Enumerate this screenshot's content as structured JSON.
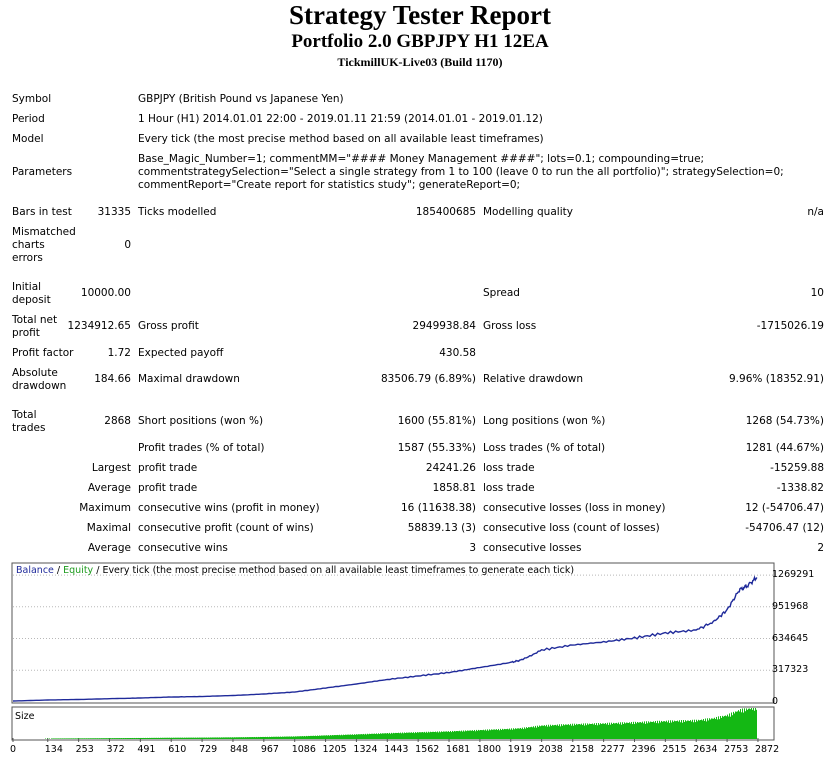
{
  "header": {
    "title": "Strategy Tester Report",
    "subtitle": "Portfolio 2.0 GBPJPY H1 12EA",
    "server": "TickmillUK-Live03 (Build 1170)"
  },
  "info": {
    "symbol_label": "Symbol",
    "symbol_value": "GBPJPY (British Pound vs Japanese Yen)",
    "period_label": "Period",
    "period_value": "1 Hour (H1) 2014.01.01 22:00 - 2019.01.11 21:59 (2014.01.01 - 2019.01.12)",
    "model_label": "Model",
    "model_value": "Every tick (the most precise method based on all available least timeframes)",
    "parameters_label": "Parameters",
    "parameters_value": "Base_Magic_Number=1; commentMM=\"#### Money Management ####\"; lots=0.1; compounding=true; commentstrategySelection=\"Select a single strategy from 1 to 100 (leave 0 to run the all portfolio)\"; strategySelection=0; commentReport=\"Create report for statistics study\"; generateReport=0;",
    "bars_label": "Bars in test",
    "bars_value": "31335",
    "ticks_label": "Ticks modelled",
    "ticks_value": "185400685",
    "quality_label": "Modelling quality",
    "quality_value": "n/a",
    "mismatched_label": "Mismatched charts errors",
    "mismatched_value": "0"
  },
  "results": {
    "deposit_label": "Initial deposit",
    "deposit_value": "10000.00",
    "spread_label": "Spread",
    "spread_value": "10",
    "net_label": "Total net profit",
    "net_value": "1234912.65",
    "gross_profit_label": "Gross profit",
    "gross_profit_value": "2949938.84",
    "gross_loss_label": "Gross loss",
    "gross_loss_value": "-1715026.19",
    "pf_label": "Profit factor",
    "pf_value": "1.72",
    "ep_label": "Expected payoff",
    "ep_value": "430.58",
    "abs_dd_label": "Absolute drawdown",
    "abs_dd_value": "184.66",
    "max_dd_label": "Maximal drawdown",
    "max_dd_value": "83506.79 (6.89%)",
    "rel_dd_label": "Relative drawdown",
    "rel_dd_value": "9.96% (18352.91)",
    "trades_label": "Total trades",
    "trades_value": "2868",
    "short_label": "Short positions (won %)",
    "short_value": "1600 (55.81%)",
    "long_label": "Long positions (won %)",
    "long_value": "1268 (54.73%)",
    "profit_trades_label": "Profit trades (% of total)",
    "profit_trades_value": "1587 (55.33%)",
    "loss_trades_label": "Loss trades (% of total)",
    "loss_trades_value": "1281 (44.67%)",
    "largest_label": "Largest",
    "largest_pt_label": "profit trade",
    "largest_pt_value": "24241.26",
    "largest_lt_label": "loss trade",
    "largest_lt_value": "-15259.88",
    "average_label": "Average",
    "average_pt_label": "profit trade",
    "average_pt_value": "1858.81",
    "average_lt_label": "loss trade",
    "average_lt_value": "-1338.82",
    "maximum_label": "Maximum",
    "max_cw_label": "consecutive wins (profit in money)",
    "max_cw_value": "16 (11638.38)",
    "max_cl_label": "consecutive losses (loss in money)",
    "max_cl_value": "12 (-54706.47)",
    "maximal_label": "Maximal",
    "maximal_cp_label": "consecutive profit (count of wins)",
    "maximal_cp_value": "58839.13 (3)",
    "maximal_cl_label": "consecutive loss (count of losses)",
    "maximal_cl_value": "-54706.47 (12)",
    "average2_label": "Average",
    "avg_cw_label": "consecutive wins",
    "avg_cw_value": "3",
    "avg_cl_label": "consecutive losses",
    "avg_cl_value": "2"
  },
  "chart": {
    "legend_balance": "Balance",
    "legend_sep1": " / ",
    "legend_equity": "Equity",
    "legend_sep2": " / ",
    "legend_rest": "Every tick (the most precise method based on all available least timeframes to generate each tick)",
    "size_label": "Size",
    "colors": {
      "balance": "#1f2a9a",
      "equity": "#1c9a1c",
      "size": "#14b814",
      "grid": "#b8b8b8"
    }
  },
  "chart_data": {
    "type": "line",
    "series": [
      {
        "name": "Balance",
        "x": [
          0,
          134,
          253,
          372,
          491,
          610,
          729,
          848,
          967,
          1086,
          1205,
          1324,
          1443,
          1562,
          1681,
          1800,
          1919,
          1960,
          2038,
          2158,
          2277,
          2396,
          2515,
          2634,
          2700,
          2753,
          2800,
          2830,
          2868
        ],
        "values": [
          10000,
          20000,
          25000,
          33000,
          40000,
          50000,
          55000,
          65000,
          80000,
          100000,
          140000,
          180000,
          225000,
          260000,
          295000,
          345000,
          395000,
          420000,
          520000,
          570000,
          600000,
          640000,
          690000,
          720000,
          800000,
          920000,
          1120000,
          1160000,
          1245000
        ]
      }
    ],
    "yticks": [
      0,
      317323,
      634645,
      951968,
      1269291
    ],
    "xticks": [
      0,
      134,
      253,
      372,
      491,
      610,
      729,
      848,
      967,
      1086,
      1205,
      1324,
      1443,
      1562,
      1681,
      1800,
      1919,
      2038,
      2158,
      2277,
      2396,
      2515,
      2634,
      2753,
      2872
    ],
    "ylim": [
      0,
      1300000
    ],
    "xlim": [
      0,
      2930
    ]
  }
}
